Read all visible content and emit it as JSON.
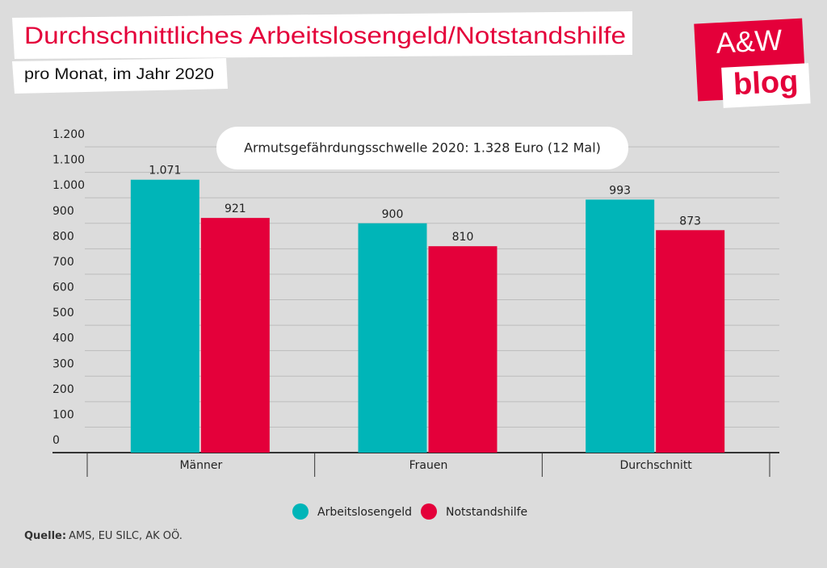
{
  "chart_data": {
    "type": "bar",
    "title": "Durchschnittliches Arbeitslosengeld/Notstandshilfe",
    "subtitle": "pro Monat, im Jahr 2020",
    "logo_top": "A&W",
    "logo_bottom": "blog",
    "annotation": "Armutsgefährdungsschwelle 2020: 1.328 Euro (12 Mal)",
    "source_label": "Quelle:",
    "source": "AMS, EU SILC, AK OÖ.",
    "categories": [
      "Männer",
      "Frauen",
      "Durchschnitt"
    ],
    "series": [
      {
        "name": "Arbeitslosengeld",
        "color": "#00b5b8",
        "values": [
          1071,
          900,
          993
        ],
        "value_labels": [
          "1.071",
          "900",
          "993"
        ]
      },
      {
        "name": "Notstandshilfe",
        "color": "#e4003a",
        "values": [
          921,
          810,
          873
        ],
        "value_labels": [
          "921",
          "810",
          "873"
        ]
      }
    ],
    "ylim": [
      0,
      1200
    ],
    "yticks": [
      0,
      100,
      200,
      300,
      400,
      500,
      600,
      700,
      800,
      900,
      {
        "value": 1000,
        "label": "1.000"
      },
      {
        "value": 1100,
        "label": "1.100"
      },
      {
        "value": 1200,
        "label": "1.200"
      }
    ],
    "grid": true
  }
}
